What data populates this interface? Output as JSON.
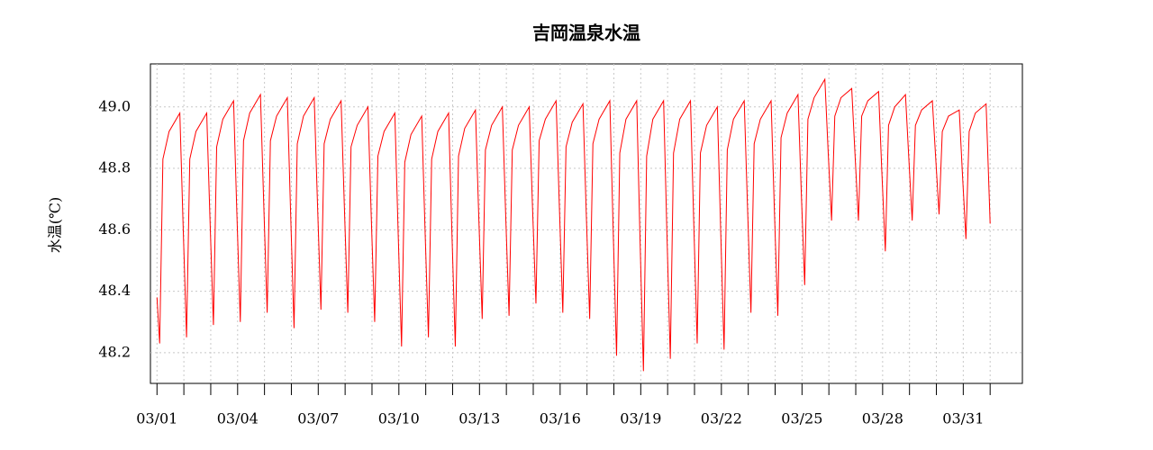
{
  "chart_data": {
    "type": "line",
    "title": "吉岡温泉水温",
    "y_label": "水温(℃)",
    "x": [
      1.0,
      1.1,
      1.22,
      1.45,
      1.85,
      1.97,
      2.1,
      2.22,
      2.45,
      2.85,
      2.97,
      3.1,
      3.22,
      3.45,
      3.85,
      3.97,
      4.1,
      4.22,
      4.45,
      4.85,
      4.97,
      5.1,
      5.22,
      5.45,
      5.85,
      5.97,
      6.1,
      6.22,
      6.45,
      6.85,
      6.97,
      7.1,
      7.22,
      7.45,
      7.85,
      7.97,
      8.1,
      8.22,
      8.45,
      8.85,
      8.97,
      9.1,
      9.22,
      9.45,
      9.85,
      9.97,
      10.1,
      10.22,
      10.45,
      10.85,
      10.97,
      11.1,
      11.22,
      11.45,
      11.85,
      11.97,
      12.1,
      12.22,
      12.45,
      12.85,
      12.97,
      13.1,
      13.22,
      13.45,
      13.85,
      13.97,
      14.1,
      14.22,
      14.45,
      14.85,
      14.97,
      15.1,
      15.22,
      15.45,
      15.85,
      15.97,
      16.1,
      16.22,
      16.45,
      16.85,
      16.97,
      17.1,
      17.22,
      17.45,
      17.85,
      17.97,
      18.1,
      18.22,
      18.45,
      18.85,
      18.97,
      19.1,
      19.22,
      19.45,
      19.85,
      19.97,
      20.1,
      20.22,
      20.45,
      20.85,
      20.97,
      21.1,
      21.22,
      21.45,
      21.85,
      21.97,
      22.1,
      22.22,
      22.45,
      22.85,
      22.97,
      23.1,
      23.22,
      23.45,
      23.85,
      23.97,
      24.1,
      24.22,
      24.45,
      24.85,
      24.97,
      25.1,
      25.22,
      25.45,
      25.85,
      25.97,
      26.1,
      26.22,
      26.45,
      26.85,
      26.97,
      27.1,
      27.22,
      27.45,
      27.85,
      27.97,
      28.1,
      28.22,
      28.45,
      28.85,
      28.97,
      29.1,
      29.22,
      29.45,
      29.85,
      29.97,
      30.1,
      30.22,
      30.45,
      30.85,
      30.97,
      31.1,
      31.22,
      31.45,
      31.85,
      32.0
    ],
    "series": [
      {
        "color": "#ff0000",
        "values": [
          48.38,
          48.23,
          48.83,
          48.92,
          48.98,
          48.62,
          48.25,
          48.83,
          48.92,
          48.98,
          48.64,
          48.29,
          48.87,
          48.96,
          49.02,
          48.66,
          48.3,
          48.89,
          48.98,
          49.04,
          48.69,
          48.33,
          48.89,
          48.97,
          49.03,
          48.66,
          48.28,
          48.88,
          48.97,
          49.03,
          48.69,
          48.34,
          48.88,
          48.96,
          49.02,
          48.68,
          48.33,
          48.87,
          48.94,
          49.0,
          48.65,
          48.3,
          48.84,
          48.92,
          48.98,
          48.6,
          48.22,
          48.82,
          48.91,
          48.97,
          48.61,
          48.25,
          48.83,
          48.92,
          48.98,
          48.6,
          48.22,
          48.84,
          48.93,
          48.99,
          48.65,
          48.31,
          48.86,
          48.94,
          49.0,
          48.66,
          48.32,
          48.86,
          48.94,
          49.0,
          48.68,
          48.36,
          48.89,
          48.96,
          49.02,
          48.68,
          48.33,
          48.87,
          48.95,
          49.01,
          48.66,
          48.31,
          48.88,
          48.96,
          49.02,
          48.61,
          48.19,
          48.85,
          48.96,
          49.02,
          48.58,
          48.14,
          48.84,
          48.96,
          49.02,
          48.6,
          48.18,
          48.85,
          48.96,
          49.02,
          48.63,
          48.23,
          48.85,
          48.94,
          49.0,
          48.61,
          48.21,
          48.86,
          48.96,
          49.02,
          48.68,
          48.33,
          48.88,
          48.96,
          49.02,
          48.67,
          48.32,
          48.9,
          48.98,
          49.04,
          48.73,
          48.42,
          48.96,
          49.03,
          49.09,
          48.86,
          48.63,
          48.97,
          49.03,
          49.06,
          48.85,
          48.63,
          48.97,
          49.02,
          49.05,
          48.79,
          48.53,
          48.94,
          49.0,
          49.04,
          48.84,
          48.63,
          48.94,
          48.99,
          49.02,
          48.84,
          48.65,
          48.92,
          48.97,
          48.99,
          48.78,
          48.57,
          48.92,
          48.98,
          49.01,
          48.62
        ]
      }
    ],
    "xlim": [
      0.756,
      33.2
    ],
    "ylim": [
      48.1,
      49.14
    ],
    "xticks": [
      {
        "value": 1,
        "label": "03/01"
      },
      {
        "value": 4,
        "label": "03/04"
      },
      {
        "value": 7,
        "label": "03/07"
      },
      {
        "value": 10,
        "label": "03/10"
      },
      {
        "value": 13,
        "label": "03/13"
      },
      {
        "value": 16,
        "label": "03/16"
      },
      {
        "value": 19,
        "label": "03/19"
      },
      {
        "value": 22,
        "label": "03/22"
      },
      {
        "value": 25,
        "label": "03/25"
      },
      {
        "value": 28,
        "label": "03/28"
      },
      {
        "value": 31,
        "label": "03/31"
      }
    ],
    "xminor_ticks": [
      2,
      3,
      5,
      6,
      8,
      9,
      11,
      12,
      14,
      15,
      17,
      18,
      20,
      21,
      23,
      24,
      26,
      27,
      29,
      30,
      32
    ],
    "yticks": [
      48.2,
      48.4,
      48.6,
      48.8,
      {
        "value": 49,
        "label": "49.0"
      }
    ],
    "grid": true
  }
}
